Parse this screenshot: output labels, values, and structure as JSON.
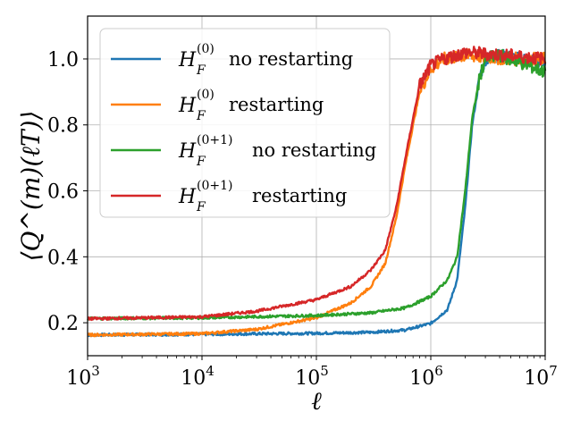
{
  "chart_data": {
    "type": "line",
    "title": "",
    "xlabel": "ℓ",
    "ylabel": "⟨Q^(m)(ℓT)⟩",
    "xscale": "log",
    "xlim": [
      1000,
      10000000
    ],
    "ylim": [
      0.1,
      1.13
    ],
    "grid": true,
    "legend_position": "upper-left",
    "x_ticks": [
      {
        "value": 1000,
        "base": "10",
        "exp": "3"
      },
      {
        "value": 10000,
        "base": "10",
        "exp": "4"
      },
      {
        "value": 100000,
        "base": "10",
        "exp": "5"
      },
      {
        "value": 1000000,
        "base": "10",
        "exp": "6"
      },
      {
        "value": 10000000,
        "base": "10",
        "exp": "7"
      }
    ],
    "y_ticks": [
      {
        "value": 0.2,
        "label": "0.2"
      },
      {
        "value": 0.4,
        "label": "0.4"
      },
      {
        "value": 0.6,
        "label": "0.6"
      },
      {
        "value": 0.8,
        "label": "0.8"
      },
      {
        "value": 1.0,
        "label": "1.0"
      }
    ],
    "series": [
      {
        "name": "H_F^(0) no restarting",
        "math_base": "H",
        "math_sub": "F",
        "math_sup": "(0)",
        "text": "no restarting",
        "color": "#1f77b4",
        "noise": 0.004,
        "x": [
          1000,
          10000,
          100000,
          300000,
          600000,
          1000000,
          1400000,
          1700000,
          2000000,
          2300000,
          2700000,
          3000000,
          4000000,
          6000000,
          10000000
        ],
        "y": [
          0.163,
          0.165,
          0.168,
          0.171,
          0.178,
          0.198,
          0.24,
          0.33,
          0.55,
          0.8,
          0.95,
          1.0,
          1.01,
          1.0,
          0.99
        ]
      },
      {
        "name": "H_F^(0) restarting",
        "math_base": "H",
        "math_sub": "F",
        "math_sup": "(0)",
        "text": "restarting",
        "color": "#ff7f0e",
        "noise": 0.004,
        "x": [
          1000,
          10000,
          30000,
          100000,
          200000,
          300000,
          400000,
          500000,
          600000,
          700000,
          800000,
          1000000,
          1300000,
          2000000,
          5000000,
          10000000
        ],
        "y": [
          0.163,
          0.167,
          0.18,
          0.215,
          0.26,
          0.31,
          0.38,
          0.52,
          0.68,
          0.8,
          0.9,
          0.97,
          1.0,
          1.01,
          1.0,
          1.0
        ]
      },
      {
        "name": "H_F^(0+1) no restarting",
        "math_base": "H",
        "math_sub": "F",
        "math_sup": "(0+1)",
        "text": "no restarting",
        "color": "#2ca02c",
        "noise": 0.004,
        "x": [
          1000,
          10000,
          100000,
          300000,
          600000,
          1000000,
          1400000,
          1700000,
          2000000,
          2300000,
          2700000,
          3000000,
          4000000,
          6000000,
          10000000
        ],
        "y": [
          0.213,
          0.215,
          0.222,
          0.23,
          0.245,
          0.28,
          0.33,
          0.4,
          0.6,
          0.82,
          0.95,
          1.0,
          1.01,
          0.99,
          0.96
        ]
      },
      {
        "name": "H_F^(0+1) restarting",
        "math_base": "H",
        "math_sub": "F",
        "math_sup": "(0+1)",
        "text": "restarting",
        "color": "#d62728",
        "noise": 0.004,
        "x": [
          1000,
          10000,
          30000,
          100000,
          200000,
          300000,
          400000,
          500000,
          600000,
          700000,
          800000,
          1000000,
          1300000,
          2000000,
          5000000,
          10000000
        ],
        "y": [
          0.212,
          0.218,
          0.235,
          0.27,
          0.31,
          0.36,
          0.42,
          0.55,
          0.7,
          0.82,
          0.92,
          0.98,
          1.0,
          1.02,
          1.01,
          1.0
        ]
      }
    ]
  }
}
